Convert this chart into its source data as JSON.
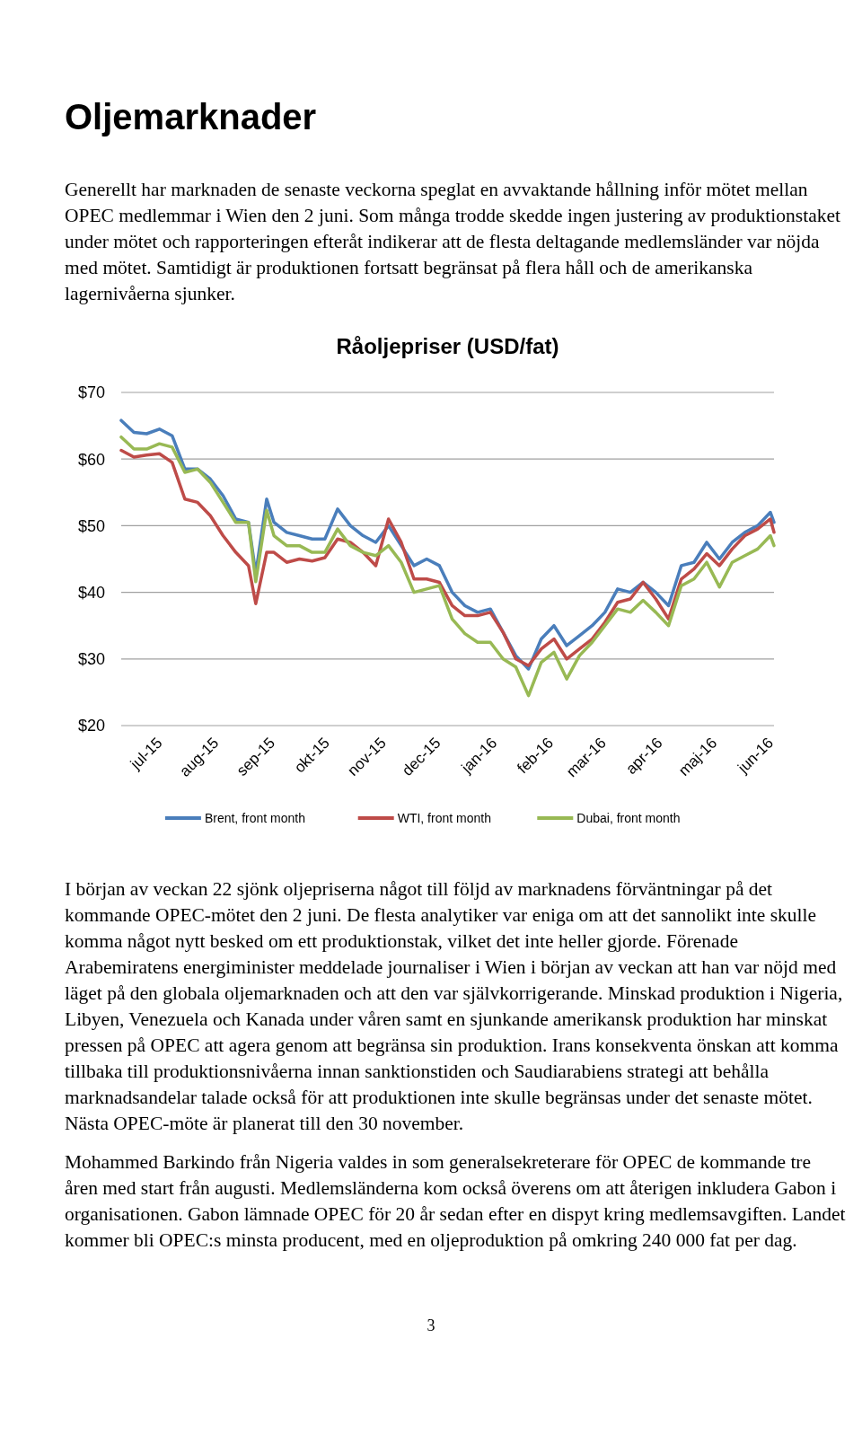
{
  "chart_data": {
    "type": "line",
    "title": "Råoljepriser (USD/fat)",
    "annotations": [
      "Oljemarknader",
      "Generellt har marknaden de senaste veckorna speglat en avvaktande hållning inför mötet mellan OPEC medlemmar i Wien den 2 juni. Som många trodde skedde ingen justering av produktionstaket under mötet och rapporteringen efteråt indikerar att de flesta deltagande medlemsländer var nöjda med mötet. Samtidigt är produktionen fortsatt begränsat på flera håll och de amerikanska lagernivåerna sjunker.",
      "I början av veckan 22 sjönk oljepriserna något till följd av marknadens förväntningar på det kommande OPEC-mötet den 2 juni. De flesta analytiker var eniga om att det sannolikt inte skulle komma något nytt besked om ett produktionstak, vilket det inte heller gjorde. Förenade Arabemiratens energiminister meddelade journaliser i Wien i början av veckan att han var nöjd med läget på den globala oljemarknaden och att den var självkorrigerande. Minskad produktion i Nigeria, Libyen, Venezuela och Kanada under våren samt en sjunkande amerikansk produktion har minskat pressen på OPEC att agera genom att begränsa sin produktion. Irans konsekventa önskan att komma tillbaka till produktionsnivåerna innan sanktionstiden och Saudiarabiens strategi att behålla marknadsandelar talade också för att produktionen inte skulle begränsas under det senaste mötet. Nästa OPEC-möte är planerat till den 30 november.",
      "Mohammed Barkindo från Nigeria valdes in som generalsekreterare för OPEC de kommande tre åren med start från augusti. Medlemsländerna kom också överens om att återigen inkludera Gabon i organisationen. Gabon lämnade OPEC för 20 år sedan efter en dispyt kring medlemsavgiften. Landet kommer bli OPEC:s minsta producent, med en oljeproduktion på omkring 240 000 fat per dag.",
      "3"
    ],
    "x": [
      "2015-06-10",
      "2015-06-17",
      "2015-06-24",
      "2015-07-01",
      "2015-07-08",
      "2015-07-15",
      "2015-07-22",
      "2015-07-29",
      "2015-08-05",
      "2015-08-12",
      "2015-08-19",
      "2015-08-23",
      "2015-08-29",
      "2015-09-02",
      "2015-09-09",
      "2015-09-16",
      "2015-09-23",
      "2015-09-30",
      "2015-10-07",
      "2015-10-14",
      "2015-10-21",
      "2015-10-28",
      "2015-11-04",
      "2015-11-11",
      "2015-11-18",
      "2015-11-25",
      "2015-12-02",
      "2015-12-09",
      "2015-12-16",
      "2015-12-23",
      "2015-12-30",
      "2016-01-06",
      "2016-01-13",
      "2016-01-20",
      "2016-01-27",
      "2016-02-03",
      "2016-02-10",
      "2016-02-17",
      "2016-02-24",
      "2016-03-02",
      "2016-03-09",
      "2016-03-16",
      "2016-03-23",
      "2016-03-30",
      "2016-04-06",
      "2016-04-13",
      "2016-04-20",
      "2016-04-27",
      "2016-05-04",
      "2016-05-11",
      "2016-05-18",
      "2016-05-25",
      "2016-06-01",
      "2016-06-03"
    ],
    "series": [
      {
        "name": "Brent, front month",
        "color": "#4a7ebb",
        "values": [
          65.8,
          64,
          63.8,
          64.5,
          63.5,
          58.5,
          58.5,
          57,
          54.5,
          51,
          50.5,
          42.8,
          54,
          50.5,
          49,
          48.5,
          48,
          48,
          52.5,
          50,
          48.5,
          47.5,
          50,
          47,
          44,
          45,
          44,
          40,
          38,
          37,
          37.5,
          34,
          30.5,
          28.5,
          33,
          35,
          32,
          33.5,
          35,
          37,
          40.5,
          40,
          41.5,
          40,
          38,
          44,
          44.5,
          47.5,
          45,
          47.5,
          49,
          50,
          52,
          50.5
        ]
      },
      {
        "name": "WTI, front month",
        "color": "#be4b48",
        "values": [
          61.3,
          60.3,
          60.6,
          60.8,
          59.5,
          54,
          53.5,
          51.5,
          48.5,
          46,
          44,
          38.3,
          46,
          46,
          44.5,
          45,
          44.7,
          45.2,
          48,
          47.5,
          46,
          44,
          51,
          47.5,
          42,
          42,
          41.5,
          38,
          36.5,
          36.5,
          37,
          34,
          30,
          29,
          31.5,
          33,
          30,
          31.5,
          33,
          35.5,
          38.5,
          39,
          41.5,
          39,
          36,
          42,
          43.5,
          45.8,
          44,
          46.5,
          48.5,
          49.5,
          51,
          49
        ]
      },
      {
        "name": "Dubai, front month",
        "color": "#98b954",
        "values": [
          63.3,
          61.5,
          61.5,
          62.3,
          61.8,
          58,
          58.5,
          56.5,
          53.5,
          50.5,
          50.5,
          41.6,
          52.3,
          48.5,
          47,
          47,
          46,
          46,
          49.5,
          47,
          46,
          45.5,
          47,
          44.5,
          40,
          40.5,
          41,
          36,
          33.8,
          32.5,
          32.5,
          30,
          28.8,
          24.5,
          29.5,
          31,
          27,
          30.5,
          32.5,
          35,
          37.5,
          37,
          38.8,
          37,
          35,
          41,
          42,
          44.5,
          40.8,
          44.5,
          45.5,
          46.5,
          48.5,
          47
        ]
      }
    ],
    "xlim": [
      "2015-06-10",
      "2016-06-03"
    ],
    "xticks": [
      {
        "value": "2015-07-01",
        "label": "jul-15"
      },
      {
        "value": "2015-08-01",
        "label": "aug-15"
      },
      {
        "value": "2015-09-01",
        "label": "sep-15"
      },
      {
        "value": "2015-10-01",
        "label": "okt-15"
      },
      {
        "value": "2015-11-01",
        "label": "nov-15"
      },
      {
        "value": "2015-12-01",
        "label": "dec-15"
      },
      {
        "value": "2016-01-01",
        "label": "jan-16"
      },
      {
        "value": "2016-02-01",
        "label": "feb-16"
      },
      {
        "value": "2016-03-01",
        "label": "mar-16"
      },
      {
        "value": "2016-04-01",
        "label": "apr-16"
      },
      {
        "value": "2016-05-01",
        "label": "maj-16"
      },
      {
        "value": "2016-06-01",
        "label": "jun-16"
      }
    ],
    "ylim": [
      20,
      70
    ],
    "yticks": [
      {
        "value": 20,
        "label": "$20"
      },
      {
        "value": 30,
        "label": "$30"
      },
      {
        "value": 40,
        "label": "$40"
      },
      {
        "value": 50,
        "label": "$50"
      },
      {
        "value": 60,
        "label": "$60"
      },
      {
        "value": 70,
        "label": "$70"
      }
    ],
    "grid": "y",
    "legend": "bottom"
  }
}
